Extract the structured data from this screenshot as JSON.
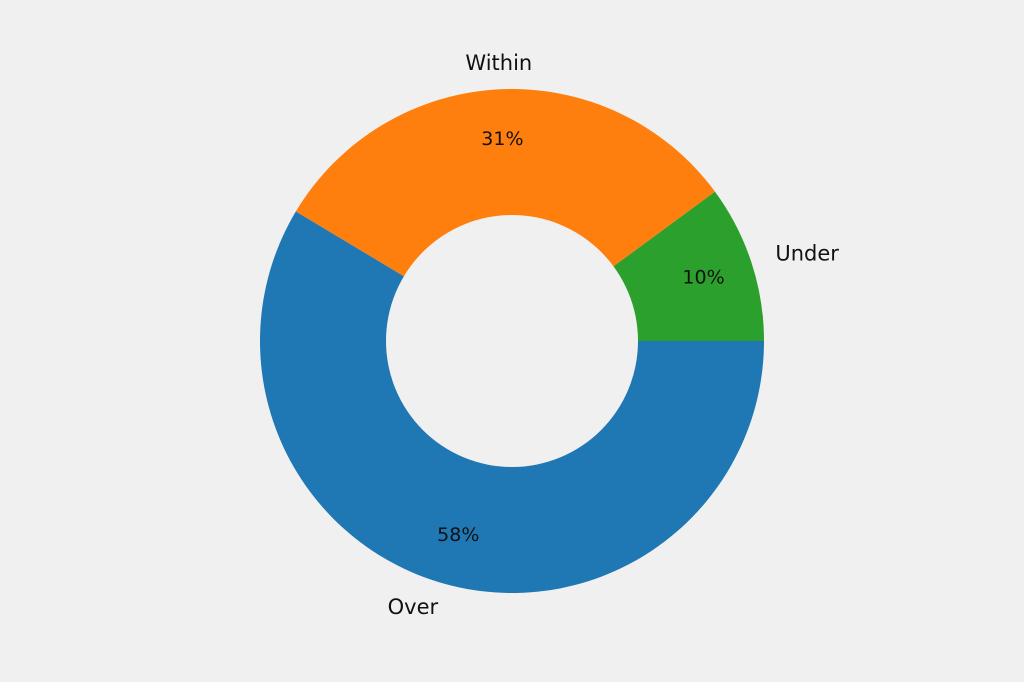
{
  "chart_data": {
    "type": "pie",
    "donut": true,
    "slices": [
      {
        "label": "Under",
        "value": 10,
        "percent_label": "10%",
        "color": "#2ca02c"
      },
      {
        "label": "Within",
        "value": 31,
        "percent_label": "31%",
        "color": "#ff7f0e"
      },
      {
        "label": "Over",
        "value": 58,
        "percent_label": "58%",
        "color": "#1f77b4"
      }
    ],
    "start_angle_deg": 0,
    "direction": "counterclockwise",
    "background": "#f0f0f0"
  }
}
